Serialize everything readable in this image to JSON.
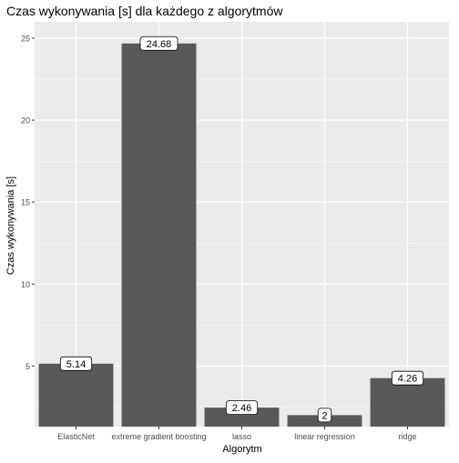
{
  "chart_data": {
    "type": "bar",
    "title": "Czas wykonywania [s] dla każdego z algorytmów",
    "xlabel": "Algorytm",
    "ylabel": "Czas wykonywania [s]",
    "categories": [
      "ElasticNet",
      "extreme gradient boosting",
      "lasso",
      "linear regression",
      "ridge"
    ],
    "values": [
      5.14,
      24.68,
      2.46,
      2,
      4.26
    ],
    "value_labels": [
      "5.14",
      "24.68",
      "2.46",
      "2",
      "4.26"
    ],
    "ylim": [
      1.3,
      26
    ],
    "yticks": [
      5,
      10,
      15,
      20,
      25
    ],
    "ytick_labels": [
      "5",
      "10",
      "15",
      "20",
      "25"
    ],
    "grid": true,
    "colors": {
      "panel": "#ebebeb",
      "grid_major": "#ffffff",
      "bar": "#595959",
      "text": "#000000",
      "tick_text": "#4d4d4d",
      "label_fill": "#ffffff",
      "label_stroke": "#000000"
    }
  }
}
